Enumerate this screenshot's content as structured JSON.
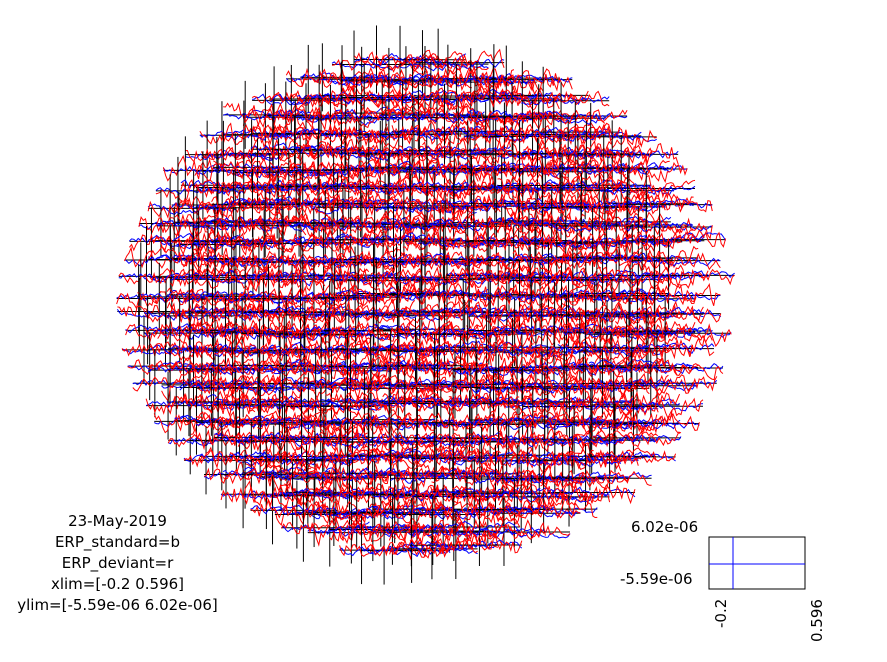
{
  "figure": {
    "info_lines": [
      "23-May-2019",
      "ERP_standard=b",
      "ERP_deviant=r",
      "xlim=[-0.2 0.596]",
      "ylim=[-5.59e-06 6.02e-06]"
    ]
  },
  "chart_data": {
    "type": "line",
    "layout": "topographic multiplot",
    "xlim": [
      -0.2,
      0.596
    ],
    "ylim": [
      -5.59e-06,
      6.02e-06
    ],
    "grid": false,
    "legend": "bottom-left text block",
    "series": [
      {
        "name": "ERP_standard",
        "color": "#0000ff"
      },
      {
        "name": "ERP_deviant",
        "color": "#ff0000"
      }
    ],
    "scale_axis": {
      "y_top_label": "6.02e-06",
      "y_bottom_label": "-5.59e-06",
      "x_left_label": "-0.2",
      "x_right_label": "0.596"
    }
  },
  "colors": {
    "standard": "#0000ff",
    "deviant": "#ff0000",
    "axes": "#000000"
  }
}
